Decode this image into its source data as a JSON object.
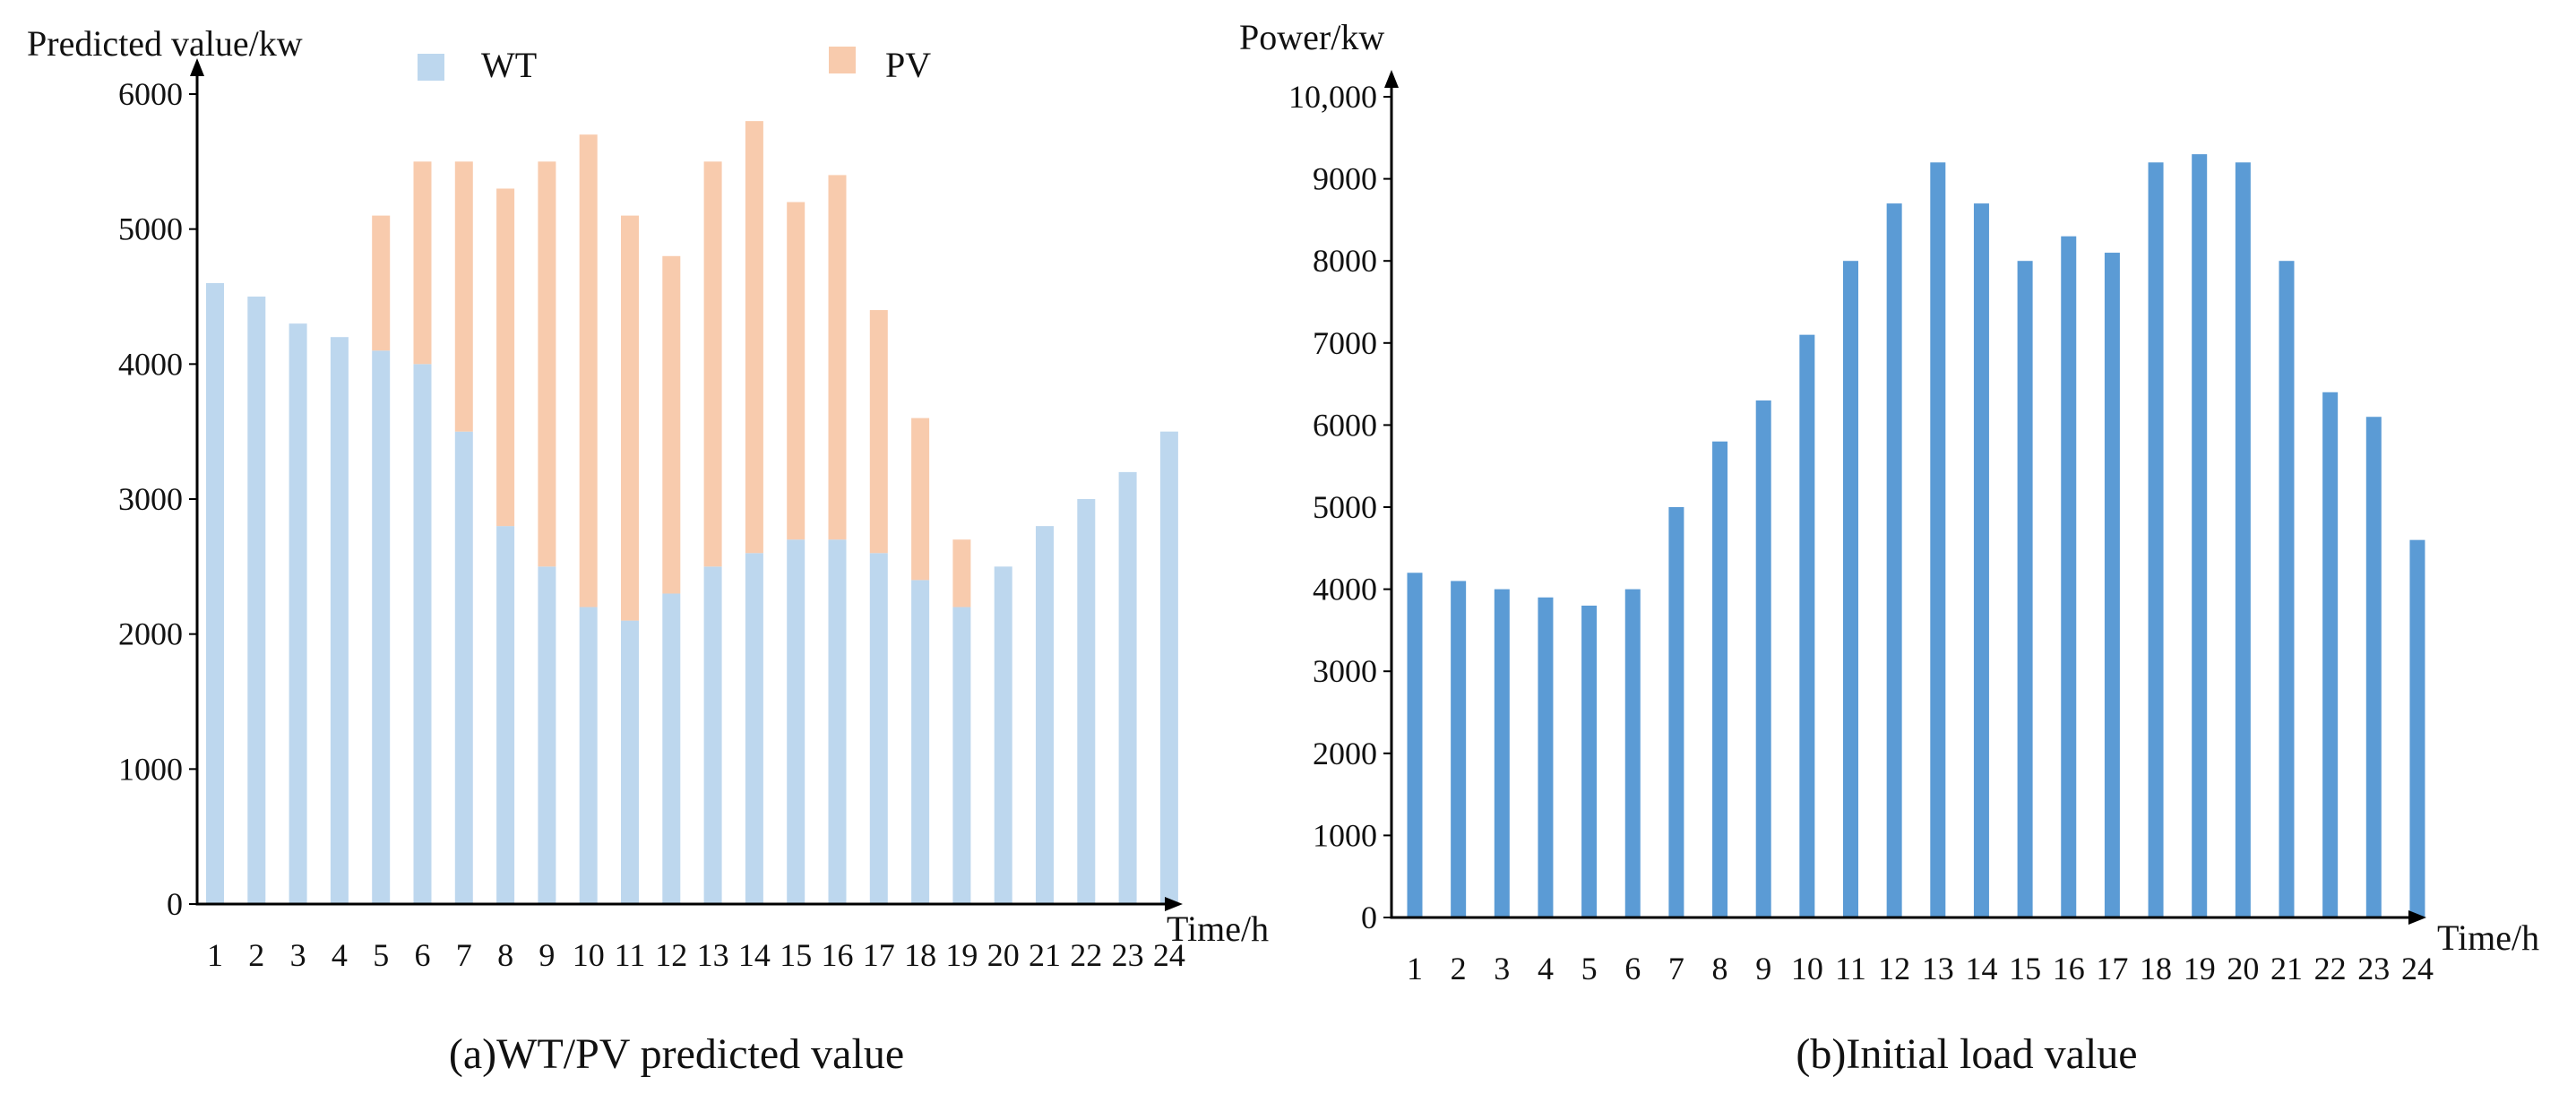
{
  "chart_data": [
    {
      "type": "bar",
      "stacked": true,
      "caption": "(a)WT/PV predicted value",
      "ylabel": "Predicted value/kw",
      "xlabel": "Time/h",
      "ylim": [
        0,
        6000
      ],
      "yticks": [
        0,
        1000,
        2000,
        3000,
        4000,
        5000,
        6000
      ],
      "categories": [
        "1",
        "2",
        "3",
        "4",
        "5",
        "6",
        "7",
        "8",
        "9",
        "10",
        "11",
        "12",
        "13",
        "14",
        "15",
        "16",
        "17",
        "18",
        "19",
        "20",
        "21",
        "22",
        "23",
        "24"
      ],
      "series": [
        {
          "name": "WT",
          "color": "#bdd7ee",
          "values": [
            4600,
            4500,
            4300,
            4200,
            4100,
            4000,
            3500,
            2800,
            2500,
            2200,
            2100,
            2300,
            2500,
            2600,
            2700,
            2700,
            2600,
            2400,
            2200,
            2500,
            2800,
            3000,
            3200,
            3500
          ]
        },
        {
          "name": "PV",
          "color": "#f8cbad",
          "values": [
            0,
            0,
            0,
            0,
            1000,
            1500,
            2000,
            2500,
            3000,
            3500,
            3000,
            2500,
            3000,
            3200,
            2500,
            2700,
            1800,
            1200,
            500,
            0,
            0,
            0,
            0,
            0
          ]
        }
      ],
      "legend_position": "top"
    },
    {
      "type": "bar",
      "caption": "(b)Initial load value",
      "ylabel": "Power/kw",
      "xlabel": "Time/h",
      "ylim": [
        0,
        10000
      ],
      "yticks": [
        0,
        1000,
        2000,
        3000,
        4000,
        5000,
        6000,
        7000,
        8000,
        9000,
        10000
      ],
      "ytick_labels": [
        "0",
        "1000",
        "2000",
        "3000",
        "4000",
        "5000",
        "6000",
        "7000",
        "8000",
        "9000",
        "10,000"
      ],
      "categories": [
        "1",
        "2",
        "3",
        "4",
        "5",
        "6",
        "7",
        "8",
        "9",
        "10",
        "11",
        "12",
        "13",
        "14",
        "15",
        "16",
        "17",
        "18",
        "19",
        "20",
        "21",
        "22",
        "23",
        "24"
      ],
      "series": [
        {
          "name": "Load",
          "color": "#5b9bd5",
          "values": [
            4200,
            4100,
            4000,
            3900,
            3800,
            4000,
            5000,
            5800,
            6300,
            7100,
            8000,
            8700,
            9200,
            8700,
            8000,
            8300,
            8100,
            9200,
            9300,
            9200,
            8000,
            6400,
            6100,
            4600
          ]
        }
      ]
    }
  ]
}
